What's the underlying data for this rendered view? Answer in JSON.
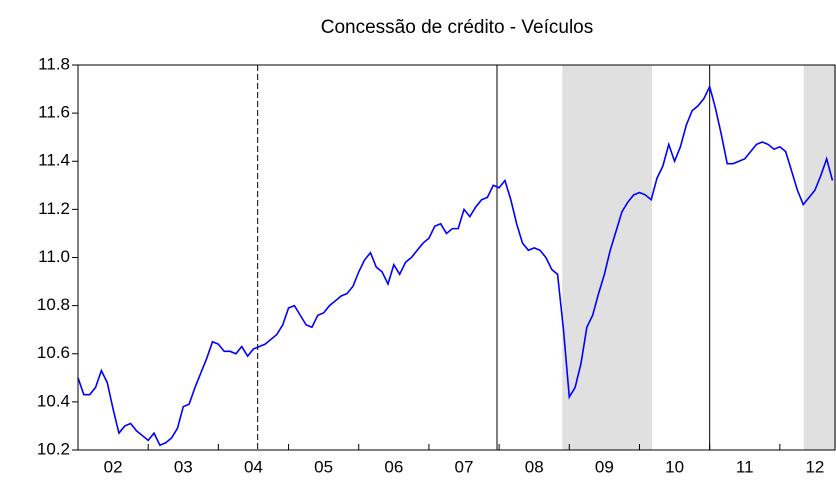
{
  "chart_data": {
    "type": "line",
    "title": "Concessão de crédito - Veículos",
    "x": [
      2002,
      2002.083,
      2002.167,
      2002.25,
      2002.333,
      2002.417,
      2002.5,
      2002.583,
      2002.667,
      2002.75,
      2002.833,
      2002.917,
      2003,
      2003.083,
      2003.167,
      2003.25,
      2003.333,
      2003.417,
      2003.5,
      2003.583,
      2003.667,
      2003.75,
      2003.833,
      2003.917,
      2004,
      2004.083,
      2004.167,
      2004.25,
      2004.333,
      2004.417,
      2004.5,
      2004.583,
      2004.667,
      2004.75,
      2004.833,
      2004.917,
      2005,
      2005.083,
      2005.167,
      2005.25,
      2005.333,
      2005.417,
      2005.5,
      2005.583,
      2005.667,
      2005.75,
      2005.833,
      2005.917,
      2006,
      2006.083,
      2006.167,
      2006.25,
      2006.333,
      2006.417,
      2006.5,
      2006.583,
      2006.667,
      2006.75,
      2006.833,
      2006.917,
      2007,
      2007.083,
      2007.167,
      2007.25,
      2007.333,
      2007.417,
      2007.5,
      2007.583,
      2007.667,
      2007.75,
      2007.833,
      2007.917,
      2008,
      2008.083,
      2008.167,
      2008.25,
      2008.333,
      2008.417,
      2008.5,
      2008.583,
      2008.667,
      2008.75,
      2008.833,
      2008.917,
      2009,
      2009.083,
      2009.167,
      2009.25,
      2009.333,
      2009.417,
      2009.5,
      2009.583,
      2009.667,
      2009.75,
      2009.833,
      2009.917,
      2010,
      2010.083,
      2010.167,
      2010.25,
      2010.333,
      2010.417,
      2010.5,
      2010.583,
      2010.667,
      2010.75,
      2010.833,
      2010.917,
      2011,
      2011.083,
      2011.167,
      2011.25,
      2011.333,
      2011.417,
      2011.5,
      2011.583,
      2011.667,
      2011.75,
      2011.833,
      2011.917,
      2012,
      2012.083,
      2012.167,
      2012.25,
      2012.333,
      2012.417,
      2012.5,
      2012.583,
      2012.667,
      2012.75
    ],
    "series": [
      {
        "color": "#0000ff",
        "values": [
          10.5,
          10.43,
          10.43,
          10.46,
          10.53,
          10.48,
          10.37,
          10.27,
          10.3,
          10.31,
          10.28,
          10.26,
          10.24,
          10.27,
          10.22,
          10.23,
          10.25,
          10.29,
          10.38,
          10.39,
          10.46,
          10.52,
          10.58,
          10.65,
          10.64,
          10.61,
          10.61,
          10.6,
          10.63,
          10.59,
          10.62,
          10.63,
          10.64,
          10.66,
          10.68,
          10.72,
          10.79,
          10.8,
          10.76,
          10.72,
          10.71,
          10.76,
          10.77,
          10.8,
          10.82,
          10.84,
          10.85,
          10.88,
          10.94,
          10.99,
          11.02,
          10.96,
          10.94,
          10.89,
          10.97,
          10.93,
          10.98,
          11.0,
          11.03,
          11.06,
          11.08,
          11.13,
          11.14,
          11.1,
          11.12,
          11.12,
          11.2,
          11.17,
          11.21,
          11.24,
          11.25,
          11.3,
          11.29,
          11.32,
          11.24,
          11.14,
          11.06,
          11.03,
          11.04,
          11.03,
          11.0,
          10.95,
          10.93,
          10.7,
          10.42,
          10.46,
          10.56,
          10.71,
          10.76,
          10.85,
          10.93,
          11.03,
          11.11,
          11.19,
          11.23,
          11.26,
          11.27,
          11.26,
          11.24,
          11.33,
          11.38,
          11.47,
          11.4,
          11.46,
          11.55,
          11.61,
          11.63,
          11.66,
          11.71,
          11.62,
          11.51,
          11.39,
          11.39,
          11.4,
          11.41,
          11.44,
          11.47,
          11.48,
          11.47,
          11.45,
          11.46,
          11.44,
          11.36,
          11.28,
          11.22,
          11.25,
          11.28,
          11.34,
          11.41,
          11.32
        ]
      }
    ],
    "xlim": [
      2002,
      2012.8
    ],
    "xticks": [
      {
        "value": 2002.5,
        "label": "02"
      },
      {
        "value": 2003.5,
        "label": "03"
      },
      {
        "value": 2004.5,
        "label": "04"
      },
      {
        "value": 2005.5,
        "label": "05"
      },
      {
        "value": 2006.5,
        "label": "06"
      },
      {
        "value": 2007.5,
        "label": "07"
      },
      {
        "value": 2008.5,
        "label": "08"
      },
      {
        "value": 2009.5,
        "label": "09"
      },
      {
        "value": 2010.5,
        "label": "10"
      },
      {
        "value": 2011.5,
        "label": "11"
      },
      {
        "value": 2012.5,
        "label": "12"
      }
    ],
    "xtick_marks": [
      2003,
      2004,
      2005,
      2006,
      2007,
      2008,
      2009,
      2010,
      2011,
      2012
    ],
    "ylim": [
      10.2,
      11.8
    ],
    "yticks": [
      10.2,
      10.4,
      10.6,
      10.8,
      {
        "value": 11,
        "label": "11.0"
      },
      11.2,
      11.4,
      11.6,
      11.8
    ],
    "vlines": [
      {
        "x": 2004.56,
        "style": "dashed"
      },
      {
        "x": 2007.97,
        "style": "solid"
      },
      {
        "x": 2011.0,
        "style": "solid"
      }
    ],
    "shaded": [
      [
        2008.9,
        2010.18
      ],
      [
        2012.34,
        2012.8
      ]
    ],
    "shade_color": "#e0e0e0"
  }
}
